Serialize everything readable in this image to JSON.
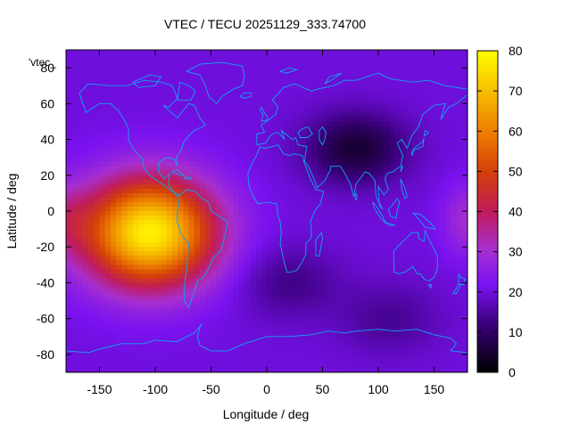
{
  "chart_data": {
    "type": "heatmap",
    "title": "VTEC / TECU 20251129_333.74700",
    "xlabel": "Longitude / deg",
    "ylabel": "Latitude / deg",
    "series_label": "'vtec_",
    "xlim": [
      -180,
      180
    ],
    "ylim": [
      -90,
      90
    ],
    "x_ticks": [
      -150,
      -100,
      -50,
      0,
      50,
      100,
      150
    ],
    "y_ticks": [
      -80,
      -60,
      -40,
      -20,
      0,
      20,
      40,
      60,
      80
    ],
    "x_tick_labels": [
      "-150",
      "-100",
      "-50",
      "0",
      "50",
      "100",
      "150"
    ],
    "y_tick_labels": [
      "-80",
      "-60",
      "-40",
      "-20",
      "0",
      "20",
      "40",
      "60",
      "80"
    ],
    "colorbar": {
      "range": [
        0,
        80
      ],
      "ticks": [
        0,
        10,
        20,
        30,
        40,
        50,
        60,
        70,
        80
      ],
      "tick_labels": [
        "0",
        "10",
        "20",
        "30",
        "40",
        "50",
        "60",
        "70",
        "80"
      ],
      "palette": "black-blue-purple-red-orange-yellow"
    },
    "grid": false,
    "field_summary": {
      "background_vtec": 20,
      "peaks": [
        {
          "lon": -105,
          "lat": -12,
          "vtec": 78
        },
        {
          "lon": 180,
          "lat": -5,
          "vtec": 30
        }
      ],
      "troughs": [
        {
          "lon": 80,
          "lat": 35,
          "vtec": 5
        },
        {
          "lon": 110,
          "lat": -60,
          "vtec": 14
        },
        {
          "lon": 20,
          "lat": -40,
          "vtec": 13
        }
      ]
    }
  }
}
